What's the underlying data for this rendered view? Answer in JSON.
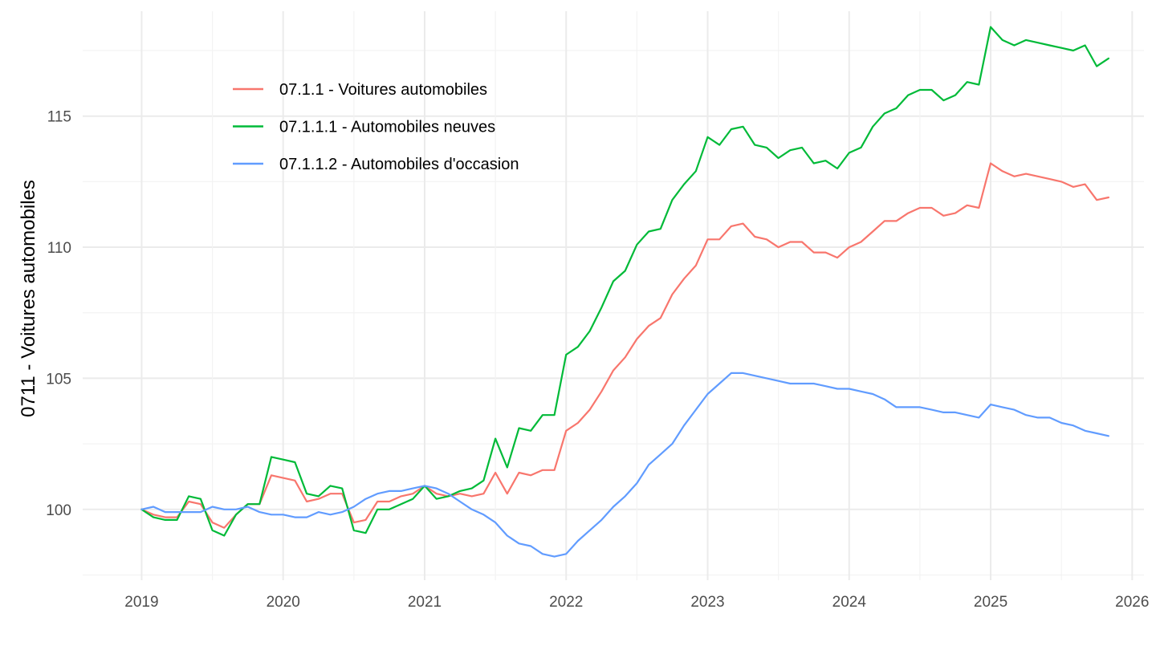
{
  "chart_data": {
    "type": "line",
    "title": "",
    "xlabel": "",
    "ylabel": "0711 - Voitures automobiles",
    "grid": true,
    "legend_position": "top-left",
    "x_ticks": [
      "2019",
      "2020",
      "2021",
      "2022",
      "2023",
      "2024",
      "2025",
      "2026"
    ],
    "y_ticks": [
      100,
      105,
      110,
      115
    ],
    "xlim": [
      "2018-08",
      "2026-02"
    ],
    "ylim": [
      97.3,
      119
    ],
    "x": [
      "2019-01",
      "2019-02",
      "2019-03",
      "2019-04",
      "2019-05",
      "2019-06",
      "2019-07",
      "2019-08",
      "2019-09",
      "2019-10",
      "2019-11",
      "2019-12",
      "2020-01",
      "2020-02",
      "2020-03",
      "2020-04",
      "2020-05",
      "2020-06",
      "2020-07",
      "2020-08",
      "2020-09",
      "2020-10",
      "2020-11",
      "2020-12",
      "2021-01",
      "2021-02",
      "2021-03",
      "2021-04",
      "2021-05",
      "2021-06",
      "2021-07",
      "2021-08",
      "2021-09",
      "2021-10",
      "2021-11",
      "2021-12",
      "2022-01",
      "2022-02",
      "2022-03",
      "2022-04",
      "2022-05",
      "2022-06",
      "2022-07",
      "2022-08",
      "2022-09",
      "2022-10",
      "2022-11",
      "2022-12",
      "2023-01",
      "2023-02",
      "2023-03",
      "2023-04",
      "2023-05",
      "2023-06",
      "2023-07",
      "2023-08",
      "2023-09",
      "2023-10",
      "2023-11",
      "2023-12",
      "2024-01",
      "2024-02",
      "2024-03",
      "2024-04",
      "2024-05",
      "2024-06",
      "2024-07",
      "2024-08",
      "2024-09",
      "2024-10",
      "2024-11",
      "2024-12",
      "2025-01",
      "2025-02",
      "2025-03",
      "2025-04",
      "2025-05",
      "2025-06",
      "2025-07",
      "2025-08",
      "2025-09",
      "2025-10",
      "2025-11"
    ],
    "series": [
      {
        "name": "07.1.1 - Voitures automobiles",
        "color": "#F8766D",
        "values": [
          100.0,
          99.8,
          99.7,
          99.7,
          100.3,
          100.2,
          99.5,
          99.3,
          99.8,
          100.2,
          100.2,
          101.3,
          101.2,
          101.1,
          100.3,
          100.4,
          100.6,
          100.6,
          99.5,
          99.6,
          100.3,
          100.3,
          100.5,
          100.6,
          100.9,
          100.6,
          100.5,
          100.6,
          100.5,
          100.6,
          101.4,
          100.6,
          101.4,
          101.3,
          101.5,
          101.5,
          103.0,
          103.3,
          103.8,
          104.5,
          105.3,
          105.8,
          106.5,
          107.0,
          107.3,
          108.2,
          108.8,
          109.3,
          110.3,
          110.3,
          110.8,
          110.9,
          110.4,
          110.3,
          110.0,
          110.2,
          110.2,
          109.8,
          109.8,
          109.6,
          110.0,
          110.2,
          110.6,
          111.0,
          111.0,
          111.3,
          111.5,
          111.5,
          111.2,
          111.3,
          111.6,
          111.5,
          113.2,
          112.9,
          112.7,
          112.8,
          112.7,
          112.6,
          112.5,
          112.3,
          112.4,
          111.8,
          111.9
        ]
      },
      {
        "name": "07.1.1.1 - Automobiles neuves",
        "color": "#00BA38",
        "values": [
          100.0,
          99.7,
          99.6,
          99.6,
          100.5,
          100.4,
          99.2,
          99.0,
          99.8,
          100.2,
          100.2,
          102.0,
          101.9,
          101.8,
          100.6,
          100.5,
          100.9,
          100.8,
          99.2,
          99.1,
          100.0,
          100.0,
          100.2,
          100.4,
          100.9,
          100.4,
          100.5,
          100.7,
          100.8,
          101.1,
          102.7,
          101.6,
          103.1,
          103.0,
          103.6,
          103.6,
          105.9,
          106.2,
          106.8,
          107.7,
          108.7,
          109.1,
          110.1,
          110.6,
          110.7,
          111.8,
          112.4,
          112.9,
          114.2,
          113.9,
          114.5,
          114.6,
          113.9,
          113.8,
          113.4,
          113.7,
          113.8,
          113.2,
          113.3,
          113.0,
          113.6,
          113.8,
          114.6,
          115.1,
          115.3,
          115.8,
          116.0,
          116.0,
          115.6,
          115.8,
          116.3,
          116.2,
          118.4,
          117.9,
          117.7,
          117.9,
          117.8,
          117.7,
          117.6,
          117.5,
          117.7,
          116.9,
          117.2
        ]
      },
      {
        "name": "07.1.1.2 - Automobiles d'occasion",
        "color": "#619CFF",
        "values": [
          100.0,
          100.1,
          99.9,
          99.9,
          99.9,
          99.9,
          100.1,
          100.0,
          100.0,
          100.1,
          99.9,
          99.8,
          99.8,
          99.7,
          99.7,
          99.9,
          99.8,
          99.9,
          100.1,
          100.4,
          100.6,
          100.7,
          100.7,
          100.8,
          100.9,
          100.8,
          100.6,
          100.3,
          100.0,
          99.8,
          99.5,
          99.0,
          98.7,
          98.6,
          98.3,
          98.2,
          98.3,
          98.8,
          99.2,
          99.6,
          100.1,
          100.5,
          101.0,
          101.7,
          102.1,
          102.5,
          103.2,
          103.8,
          104.4,
          104.8,
          105.2,
          105.2,
          105.1,
          105.0,
          104.9,
          104.8,
          104.8,
          104.8,
          104.7,
          104.6,
          104.6,
          104.5,
          104.4,
          104.2,
          103.9,
          103.9,
          103.9,
          103.8,
          103.7,
          103.7,
          103.6,
          103.5,
          104.0,
          103.9,
          103.8,
          103.6,
          103.5,
          103.5,
          103.3,
          103.2,
          103.0,
          102.9,
          102.8
        ]
      }
    ]
  }
}
